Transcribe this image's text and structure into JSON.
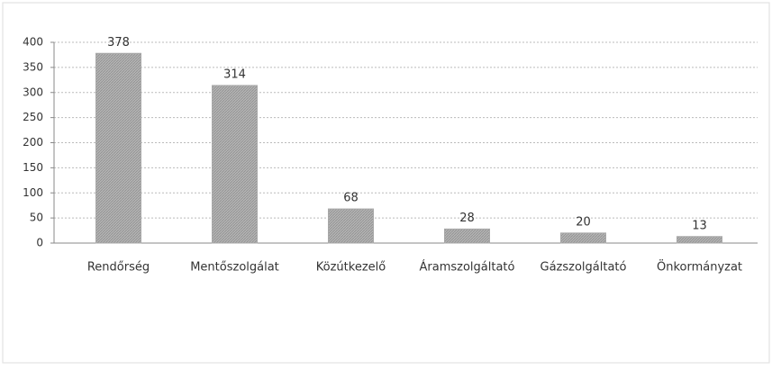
{
  "chart_data": {
    "type": "bar",
    "categories": [
      "Rendőrség",
      "Mentőszolgálat",
      "Közútkezelő",
      "Áramszolgáltató",
      "Gázszolgáltató",
      "Önkormányzat"
    ],
    "values": [
      378,
      314,
      68,
      28,
      20,
      13
    ],
    "color": "#a8a8a8",
    "ylim": [
      0,
      400
    ],
    "yticks": [
      0,
      50,
      100,
      150,
      200,
      250,
      300,
      350,
      400
    ],
    "grid": true
  }
}
